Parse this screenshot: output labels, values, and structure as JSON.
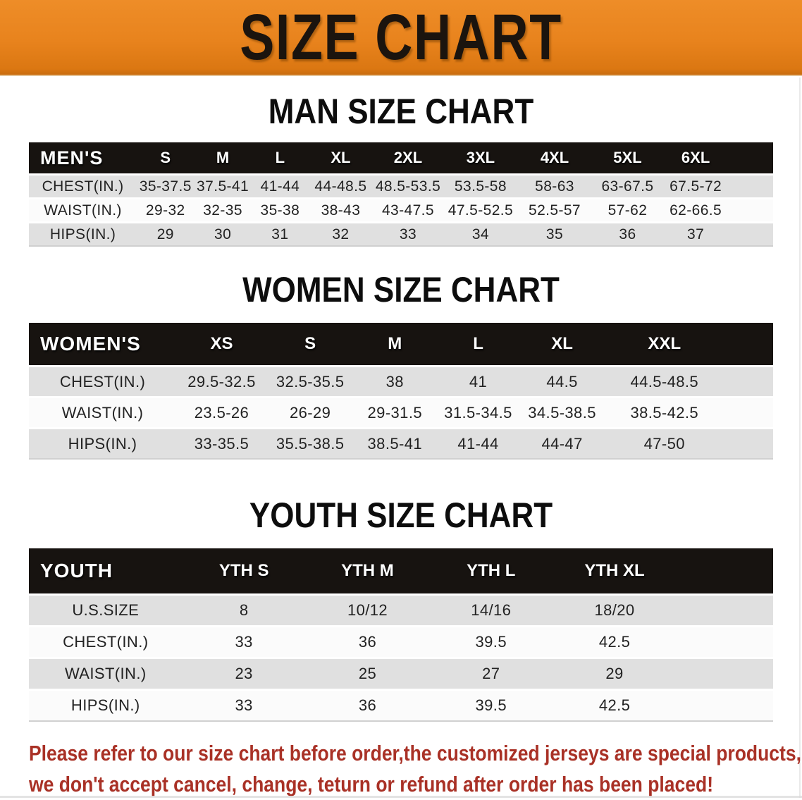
{
  "banner": {
    "title": "SIZE CHART",
    "bg_color": "#e8831d",
    "text_color": "#1b140e"
  },
  "sections": [
    {
      "heading": "MAN SIZE CHART",
      "header": {
        "label": "MEN'S",
        "sizes": [
          "S",
          "M",
          "L",
          "XL",
          "2XL",
          "3XL",
          "4XL",
          "5XL",
          "6XL"
        ]
      },
      "rows": [
        {
          "label": "CHEST(IN.)",
          "values": [
            "35-37.5",
            "37.5-41",
            "41-44",
            "44-48.5",
            "48.5-53.5",
            "53.5-58",
            "58-63",
            "63-67.5",
            "67.5-72"
          ]
        },
        {
          "label": "WAIST(IN.)",
          "values": [
            "29-32",
            "32-35",
            "35-38",
            "38-43",
            "43-47.5",
            "47.5-52.5",
            "52.5-57",
            "57-62",
            "62-66.5"
          ]
        },
        {
          "label": "HIPS(IN.)",
          "values": [
            "29",
            "30",
            "31",
            "32",
            "33",
            "34",
            "35",
            "36",
            "37"
          ]
        }
      ]
    },
    {
      "heading": "WOMEN SIZE CHART",
      "header": {
        "label": "WOMEN'S",
        "sizes": [
          "XS",
          "S",
          "M",
          "L",
          "XL",
          "XXL"
        ]
      },
      "rows": [
        {
          "label": "CHEST(IN.)",
          "values": [
            "29.5-32.5",
            "32.5-35.5",
            "38",
            "41",
            "44.5",
            "44.5-48.5"
          ]
        },
        {
          "label": "WAIST(IN.)",
          "values": [
            "23.5-26",
            "26-29",
            "29-31.5",
            "31.5-34.5",
            "34.5-38.5",
            "38.5-42.5"
          ]
        },
        {
          "label": "HIPS(IN.)",
          "values": [
            "33-35.5",
            "35.5-38.5",
            "38.5-41",
            "41-44",
            "44-47",
            "47-50"
          ]
        }
      ]
    },
    {
      "heading": "YOUTH SIZE CHART",
      "header": {
        "label": "YOUTH",
        "sizes": [
          "YTH S",
          "YTH M",
          "YTH L",
          "YTH XL"
        ]
      },
      "rows": [
        {
          "label": "U.S.SIZE",
          "values": [
            "8",
            "10/12",
            "14/16",
            "18/20"
          ]
        },
        {
          "label": "CHEST(IN.)",
          "values": [
            "33",
            "36",
            "39.5",
            "42.5"
          ]
        },
        {
          "label": "WAIST(IN.)",
          "values": [
            "23",
            "25",
            "27",
            "29"
          ]
        },
        {
          "label": "HIPS(IN.)",
          "values": [
            "33",
            "36",
            "39.5",
            "42.5"
          ]
        }
      ]
    }
  ],
  "disclaimer": {
    "line1": "Please refer to our size chart before order,the customized jerseys are special products,",
    "line2": "we don't accept cancel, change, teturn or refund after order has been placed!",
    "color": "#a93126"
  }
}
